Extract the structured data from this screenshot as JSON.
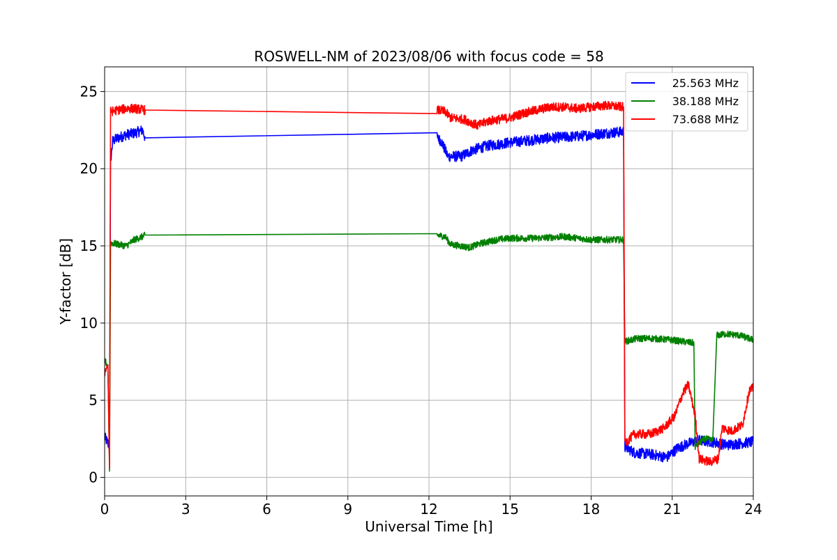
{
  "chart_data": {
    "type": "line",
    "title": "ROSWELL-NM of 2023/08/06 with focus code = 58",
    "xlabel": "Universal Time [h]",
    "ylabel": "Y-factor [dB]",
    "xlim": [
      0,
      24
    ],
    "ylim": [
      -1.2,
      26.6
    ],
    "x_ticks": [
      0,
      3,
      6,
      9,
      12,
      15,
      18,
      21,
      24
    ],
    "x_tick_labels": [
      "0",
      "3",
      "6",
      "9",
      "12",
      "15",
      "18",
      "21",
      "24"
    ],
    "y_ticks": [
      0,
      5,
      10,
      15,
      20,
      25
    ],
    "y_tick_labels": [
      "0",
      "5",
      "10",
      "15",
      "20",
      "25"
    ],
    "grid": true,
    "legend_position": "top-right",
    "series": [
      {
        "name": "25.563 MHz",
        "color": "#0000ff",
        "noise": 0.35,
        "points": [
          [
            0,
            2.6
          ],
          [
            0.1,
            2.3
          ],
          [
            0.18,
            2.0
          ],
          [
            0.22,
            20.5
          ],
          [
            0.3,
            21.8
          ],
          [
            0.5,
            22.0
          ],
          [
            0.8,
            22.2
          ],
          [
            1.1,
            22.3
          ],
          [
            1.4,
            22.5
          ],
          [
            1.5,
            22.0
          ],
          [
            12.3,
            22.0
          ],
          [
            12.45,
            21.8
          ],
          [
            12.7,
            20.8
          ],
          [
            13.2,
            20.8
          ],
          [
            13.6,
            21.2
          ],
          [
            14.2,
            21.5
          ],
          [
            15.0,
            21.7
          ],
          [
            15.5,
            21.8
          ],
          [
            16.0,
            21.9
          ],
          [
            16.5,
            22.0
          ],
          [
            17.5,
            22.1
          ],
          [
            18.5,
            22.3
          ],
          [
            19.2,
            22.4
          ],
          [
            19.25,
            2.0
          ],
          [
            19.6,
            1.6
          ],
          [
            20.2,
            1.5
          ],
          [
            20.8,
            1.3
          ],
          [
            21.2,
            1.9
          ],
          [
            21.6,
            2.2
          ],
          [
            22.0,
            2.4
          ],
          [
            22.5,
            2.3
          ],
          [
            23.0,
            2.1
          ],
          [
            23.5,
            2.2
          ],
          [
            24,
            2.3
          ]
        ]
      },
      {
        "name": "38.188 MHz",
        "color": "#008000",
        "noise": 0.22,
        "points": [
          [
            0,
            7.6
          ],
          [
            0.12,
            7.2
          ],
          [
            0.18,
            0.4
          ],
          [
            0.22,
            15.2
          ],
          [
            0.5,
            15.1
          ],
          [
            0.8,
            15.0
          ],
          [
            1.1,
            15.4
          ],
          [
            1.4,
            15.6
          ],
          [
            1.5,
            15.7
          ],
          [
            12.3,
            15.7
          ],
          [
            12.6,
            15.6
          ],
          [
            12.8,
            15.1
          ],
          [
            13.5,
            14.9
          ],
          [
            14.0,
            15.2
          ],
          [
            14.5,
            15.4
          ],
          [
            15.0,
            15.5
          ],
          [
            16.0,
            15.5
          ],
          [
            17.0,
            15.6
          ],
          [
            18.0,
            15.4
          ],
          [
            19.2,
            15.4
          ],
          [
            19.25,
            8.8
          ],
          [
            19.7,
            9.0
          ],
          [
            20.3,
            9.0
          ],
          [
            21.0,
            8.9
          ],
          [
            21.4,
            8.8
          ],
          [
            21.8,
            8.7
          ],
          [
            21.85,
            2.0
          ],
          [
            22.2,
            2.5
          ],
          [
            22.5,
            2.4
          ],
          [
            22.65,
            9.2
          ],
          [
            23.0,
            9.3
          ],
          [
            23.5,
            9.2
          ],
          [
            24,
            8.9
          ]
        ]
      },
      {
        "name": "73.688 MHz",
        "color": "#ff0000",
        "noise": 0.3,
        "points": [
          [
            0,
            6.8
          ],
          [
            0.12,
            7.3
          ],
          [
            0.18,
            0.6
          ],
          [
            0.22,
            23.7
          ],
          [
            0.5,
            23.8
          ],
          [
            0.8,
            23.9
          ],
          [
            1.1,
            23.9
          ],
          [
            1.5,
            23.8
          ],
          [
            12.3,
            23.8
          ],
          [
            12.6,
            23.7
          ],
          [
            12.8,
            23.3
          ],
          [
            13.3,
            23.2
          ],
          [
            13.8,
            22.8
          ],
          [
            14.2,
            23.1
          ],
          [
            15.0,
            23.3
          ],
          [
            15.5,
            23.6
          ],
          [
            16.0,
            23.8
          ],
          [
            16.5,
            24.0
          ],
          [
            17.0,
            24.0
          ],
          [
            17.5,
            23.9
          ],
          [
            18.0,
            24.0
          ],
          [
            18.5,
            24.1
          ],
          [
            19.2,
            24.0
          ],
          [
            19.25,
            2.2
          ],
          [
            19.6,
            2.8
          ],
          [
            20.2,
            2.8
          ],
          [
            20.7,
            3.2
          ],
          [
            21.1,
            4.0
          ],
          [
            21.4,
            5.5
          ],
          [
            21.6,
            6.0
          ],
          [
            21.85,
            4.0
          ],
          [
            22.0,
            1.2
          ],
          [
            22.4,
            1.0
          ],
          [
            22.7,
            1.2
          ],
          [
            22.85,
            3.2
          ],
          [
            23.2,
            3.0
          ],
          [
            23.6,
            3.4
          ],
          [
            23.85,
            5.6
          ],
          [
            24,
            5.8
          ]
        ]
      }
    ]
  }
}
